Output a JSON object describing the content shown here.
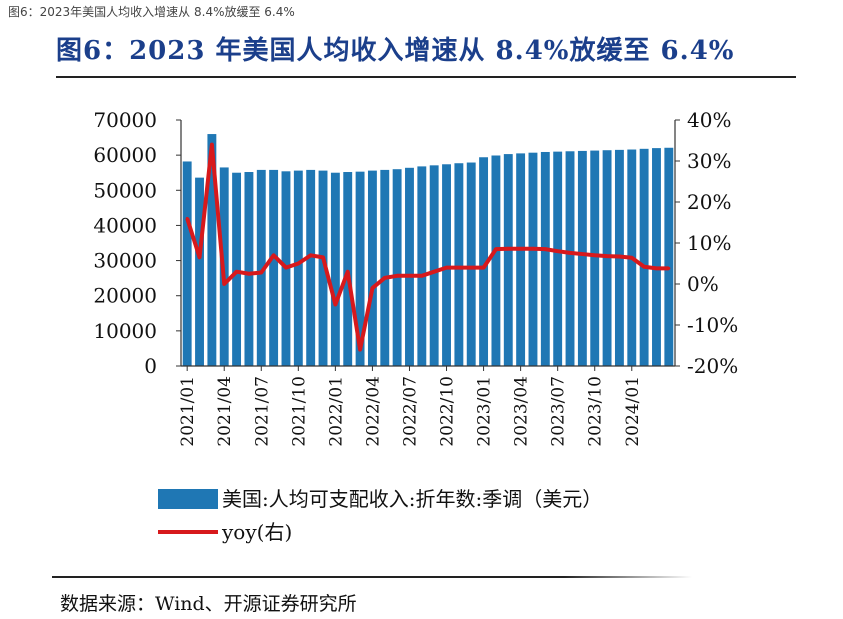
{
  "caption": "图6：2023年美国人均收入增速从 8.4%放缓至 6.4%",
  "title": "图6：2023 年美国人均收入增速从 8.4%放缓至 6.4%",
  "source": "数据来源：Wind、开源证券研究所",
  "colors": {
    "bar": "#1f77b4",
    "line": "#d7191c",
    "title": "#1b3f8b"
  },
  "chart_data": {
    "type": "bar",
    "categories": [
      "2021/01",
      "2021/02",
      "2021/03",
      "2021/04",
      "2021/05",
      "2021/06",
      "2021/07",
      "2021/08",
      "2021/09",
      "2021/10",
      "2021/11",
      "2021/12",
      "2022/01",
      "2022/02",
      "2022/03",
      "2022/04",
      "2022/05",
      "2022/06",
      "2022/07",
      "2022/08",
      "2022/09",
      "2022/10",
      "2022/11",
      "2022/12",
      "2023/01",
      "2023/02",
      "2023/03",
      "2023/04",
      "2023/05",
      "2023/06",
      "2023/07",
      "2023/08",
      "2023/09",
      "2023/10",
      "2023/11",
      "2023/12",
      "2024/01",
      "2024/02",
      "2024/03",
      "2024/04"
    ],
    "x_tick_labels": [
      "2021/01",
      "2021/04",
      "2021/07",
      "2021/10",
      "2022/01",
      "2022/04",
      "2022/07",
      "2022/10",
      "2023/01",
      "2023/04",
      "2023/07",
      "2023/10",
      "2024/01"
    ],
    "series": [
      {
        "name": "美国:人均可支配收入:折年数:季调（美元）",
        "type": "bar",
        "axis": "left",
        "values": [
          58200,
          53600,
          66000,
          56500,
          55000,
          55200,
          55800,
          55800,
          55400,
          55600,
          55800,
          55600,
          55000,
          55200,
          55300,
          55600,
          55800,
          56000,
          56400,
          56800,
          57100,
          57400,
          57700,
          57900,
          59400,
          59900,
          60300,
          60500,
          60700,
          60900,
          61000,
          61100,
          61200,
          61300,
          61400,
          61500,
          61600,
          61800,
          62000,
          62100
        ]
      },
      {
        "name": "yoy(右)",
        "type": "line",
        "axis": "right",
        "values": [
          16,
          6.5,
          34,
          0,
          3,
          2.5,
          2.8,
          7,
          4,
          5,
          7,
          6.5,
          -5,
          3,
          -16,
          -1,
          1.5,
          2,
          2,
          2,
          3,
          4,
          4,
          4,
          4,
          8.5,
          8.6,
          8.6,
          8.6,
          8.5,
          8,
          7.6,
          7.3,
          7,
          6.8,
          6.7,
          6.4,
          4.2,
          3.8,
          3.8
        ]
      }
    ],
    "y_left": {
      "min": 0,
      "max": 70000,
      "ticks": [
        "0",
        "10000",
        "20000",
        "30000",
        "40000",
        "50000",
        "60000",
        "70000"
      ]
    },
    "y_right": {
      "min": -20,
      "max": 40,
      "ticks": [
        "-20%",
        "-10%",
        "0%",
        "10%",
        "20%",
        "30%",
        "40%"
      ]
    },
    "legend": {
      "placement": "bottom",
      "entries": [
        "美国:人均可支配收入:折年数:季调（美元）",
        "yoy(右)"
      ]
    },
    "grid": false
  }
}
